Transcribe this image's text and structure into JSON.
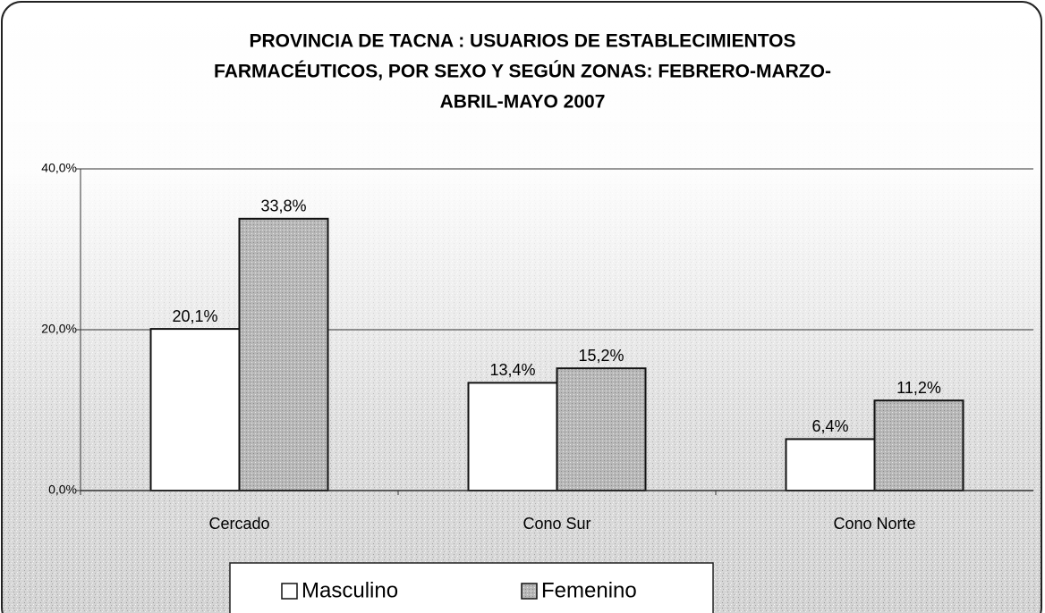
{
  "chart_data": {
    "type": "bar",
    "title": [
      "PROVINCIA DE TACNA : USUARIOS DE ESTABLECIMIENTOS",
      "FARMACÉUTICOS, POR SEXO Y  SEGÚN  ZONAS: FEBRERO-MARZO-",
      "ABRIL-MAYO 2007"
    ],
    "categories": [
      "Cercado",
      "Cono Sur",
      "Cono Norte"
    ],
    "series": [
      {
        "name": "Masculino",
        "color": "#ffffff",
        "values": [
          20.1,
          13.4,
          6.4
        ],
        "value_labels": [
          "20,1%",
          "13,4%",
          "6,4%"
        ]
      },
      {
        "name": "Femenino",
        "color": "#b8b8b8",
        "values": [
          33.8,
          15.2,
          11.2
        ],
        "value_labels": [
          "33,8%",
          "15,2%",
          "11,2%"
        ]
      }
    ],
    "ylim": [
      0,
      40
    ],
    "yticks": [
      {
        "value": 0,
        "label": "0,0%"
      },
      {
        "value": 20,
        "label": "20,0%"
      },
      {
        "value": 40,
        "label": "40,0%"
      }
    ],
    "grid": true,
    "legend": "bottom"
  }
}
